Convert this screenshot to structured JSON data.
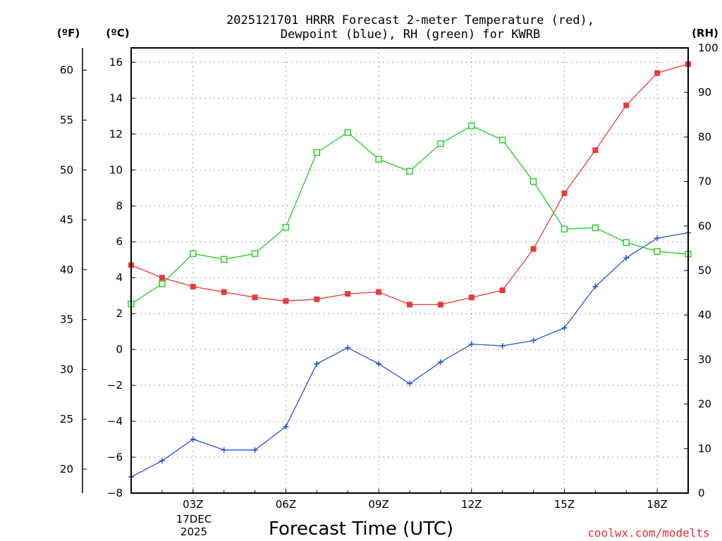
{
  "chart_data": {
    "type": "line",
    "title_line1": "2025121701 HRRR Forecast 2-meter Temperature (red),",
    "title_line2": "Dewpoint (blue), RH (green) for KWRB",
    "xlabel": "Forecast Time (UTC)",
    "date_label_1": "17DEC",
    "date_label_2": "2025",
    "credit": "coolwx.com/modelts",
    "unit_f": "(ºF)",
    "unit_c": "(ºC)",
    "unit_rh": "(RH)",
    "x": [
      1,
      2,
      3,
      4,
      5,
      6,
      7,
      8,
      9,
      10,
      11,
      12,
      13,
      14,
      15,
      16,
      17,
      18,
      19
    ],
    "xlim": [
      1,
      19
    ],
    "x_ticks": [
      {
        "value": 3,
        "label": "03Z"
      },
      {
        "value": 6,
        "label": "06Z"
      },
      {
        "value": 9,
        "label": "09Z"
      },
      {
        "value": 12,
        "label": "12Z"
      },
      {
        "value": 15,
        "label": "15Z"
      },
      {
        "value": 18,
        "label": "18Z"
      }
    ],
    "celsius_axis": {
      "range": [
        -8,
        16.8
      ],
      "ticks": [
        -8,
        -6,
        -4,
        -2,
        0,
        2,
        4,
        6,
        8,
        10,
        12,
        14,
        16
      ]
    },
    "fahrenheit_axis": {
      "ticks": [
        20,
        25,
        30,
        35,
        40,
        45,
        50,
        55,
        60
      ]
    },
    "rh_axis": {
      "range": [
        0,
        100
      ],
      "ticks": [
        0,
        10,
        20,
        30,
        40,
        50,
        60,
        70,
        80,
        90,
        100
      ]
    },
    "series": [
      {
        "name": "Temperature",
        "color": "#e83a3a",
        "marker": "filled-square",
        "axis": "celsius",
        "values": [
          4.7,
          4.0,
          3.5,
          3.2,
          2.9,
          2.7,
          2.8,
          3.1,
          3.2,
          2.5,
          2.5,
          2.9,
          3.3,
          5.6,
          8.7,
          11.1,
          13.6,
          15.4,
          15.9
        ]
      },
      {
        "name": "Dewpoint",
        "color": "#2a4fd8",
        "marker": "plus",
        "axis": "celsius",
        "values": [
          -7.1,
          -6.2,
          -5.0,
          -5.6,
          -5.6,
          -4.3,
          -0.8,
          0.1,
          -0.8,
          -1.9,
          -0.7,
          0.3,
          0.2,
          0.5,
          1.2,
          3.5,
          5.1,
          6.2,
          6.5
        ]
      },
      {
        "name": "RH",
        "color": "#22cc22",
        "marker": "open-square",
        "axis": "rh",
        "values": [
          42.5,
          47.0,
          53.8,
          52.5,
          53.8,
          59.7,
          76.5,
          81.0,
          75.0,
          72.3,
          78.5,
          82.5,
          79.3,
          70.0,
          59.3,
          59.6,
          56.3,
          54.3,
          53.7
        ]
      }
    ]
  }
}
